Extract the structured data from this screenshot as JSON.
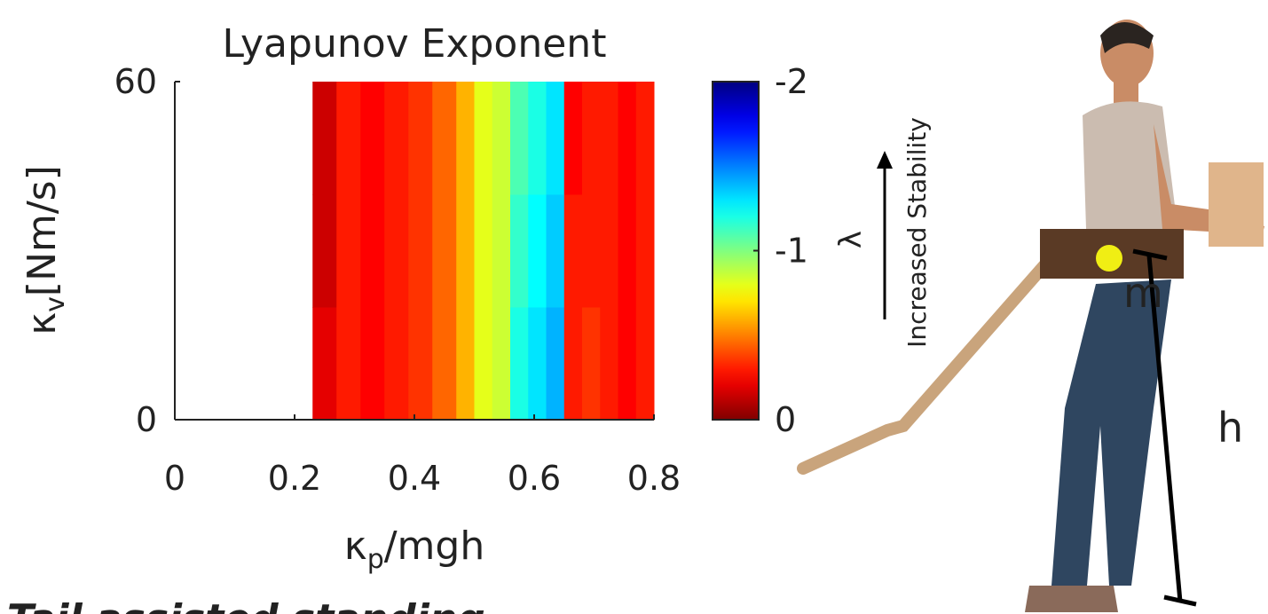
{
  "chart_data": {
    "type": "heatmap",
    "title": "Lyapunov Exponent",
    "xlabel": {
      "symbol": "κ",
      "subscript": "p",
      "rest": "/mgh"
    },
    "ylabel": {
      "symbol": "κ",
      "subscript": "v",
      "rest": "[Nm/s]"
    },
    "xlim": [
      0,
      0.8
    ],
    "ylim": [
      0,
      60
    ],
    "xticks": [
      0,
      0.2,
      0.4,
      0.6,
      0.8
    ],
    "yticks": [
      0,
      60
    ],
    "xbins": [
      0.23,
      0.27,
      0.31,
      0.35,
      0.39,
      0.43,
      0.47,
      0.5,
      0.53,
      0.56,
      0.59,
      0.62,
      0.65,
      0.68,
      0.71,
      0.74,
      0.77,
      0.8
    ],
    "ybins": [
      0,
      20,
      40,
      60
    ],
    "values": [
      [
        -0.2,
        -0.3,
        -0.25,
        -0.3,
        -0.35,
        -0.45,
        -0.6,
        -0.8,
        -0.85,
        -1.2,
        -1.3,
        -1.4,
        -0.3,
        -0.35,
        -0.3,
        -0.25,
        -0.3
      ],
      [
        -0.15,
        -0.3,
        -0.25,
        -0.3,
        -0.35,
        -0.45,
        -0.6,
        -0.8,
        -0.85,
        -1.15,
        -1.25,
        -1.35,
        -0.3,
        -0.3,
        -0.3,
        -0.25,
        -0.3
      ],
      [
        -0.15,
        -0.3,
        -0.25,
        -0.3,
        -0.35,
        -0.45,
        -0.6,
        -0.8,
        -0.85,
        -1.1,
        -1.2,
        -1.3,
        -0.25,
        -0.3,
        -0.3,
        -0.25,
        -0.3
      ]
    ],
    "colormap": "jet",
    "clim": [
      0,
      -2
    ],
    "cticks": [
      0,
      -1,
      -2
    ],
    "colorbar_label": "λ",
    "annotation": "Increased Stability"
  },
  "figure": {
    "mass_label": "m",
    "height_label": "h",
    "caption": "Tail assisted standing"
  }
}
